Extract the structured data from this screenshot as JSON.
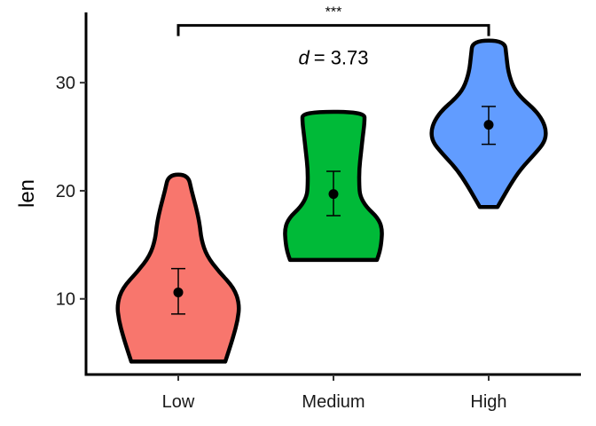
{
  "chart_data": {
    "type": "violin",
    "categories": [
      "Low",
      "Medium",
      "High"
    ],
    "ylabel": "len",
    "xlabel": "",
    "ylim": [
      3.0,
      36.5
    ],
    "yticks": [
      10,
      20,
      30
    ],
    "grid": false,
    "legend": "none",
    "colors": [
      "#F8766D",
      "#00BA38",
      "#619CFF"
    ],
    "violins": [
      {
        "category": "Low",
        "min": 4.2,
        "max": 21.5,
        "mean": 10.6,
        "ci_low": 8.6,
        "ci_high": 12.8,
        "density": [
          [
            4.2,
            0.53
          ],
          [
            5.2,
            0.57
          ],
          [
            6.5,
            0.62
          ],
          [
            8.0,
            0.67
          ],
          [
            9.5,
            0.69
          ],
          [
            11.0,
            0.63
          ],
          [
            12.5,
            0.46
          ],
          [
            14.0,
            0.32
          ],
          [
            15.5,
            0.26
          ],
          [
            17.0,
            0.24
          ],
          [
            18.5,
            0.2
          ],
          [
            20.0,
            0.15
          ],
          [
            21.5,
            0.11
          ]
        ]
      },
      {
        "category": "Medium",
        "min": 13.6,
        "max": 27.3,
        "mean": 19.7,
        "ci_low": 17.7,
        "ci_high": 21.8,
        "density": [
          [
            13.6,
            0.49
          ],
          [
            14.3,
            0.52
          ],
          [
            15.2,
            0.54
          ],
          [
            16.5,
            0.55
          ],
          [
            17.5,
            0.5
          ],
          [
            18.5,
            0.37
          ],
          [
            19.5,
            0.3
          ],
          [
            20.5,
            0.29
          ],
          [
            22.0,
            0.29
          ],
          [
            23.5,
            0.31
          ],
          [
            25.0,
            0.33
          ],
          [
            26.3,
            0.35
          ],
          [
            27.3,
            0.35
          ]
        ]
      },
      {
        "category": "High",
        "min": 18.5,
        "max": 33.9,
        "mean": 26.1,
        "ci_low": 24.3,
        "ci_high": 27.8,
        "density": [
          [
            18.5,
            0.1
          ],
          [
            19.5,
            0.17
          ],
          [
            20.5,
            0.24
          ],
          [
            22.0,
            0.36
          ],
          [
            23.5,
            0.53
          ],
          [
            24.5,
            0.63
          ],
          [
            25.5,
            0.65
          ],
          [
            26.5,
            0.61
          ],
          [
            27.5,
            0.52
          ],
          [
            28.5,
            0.38
          ],
          [
            29.5,
            0.28
          ],
          [
            31.0,
            0.22
          ],
          [
            32.5,
            0.2
          ],
          [
            33.9,
            0.18
          ]
        ]
      }
    ],
    "comparison": {
      "from": "Low",
      "to": "High",
      "y": 35.3,
      "label": "***",
      "effect_size_label": "d",
      "effect_size_value": "= 3.73"
    }
  }
}
